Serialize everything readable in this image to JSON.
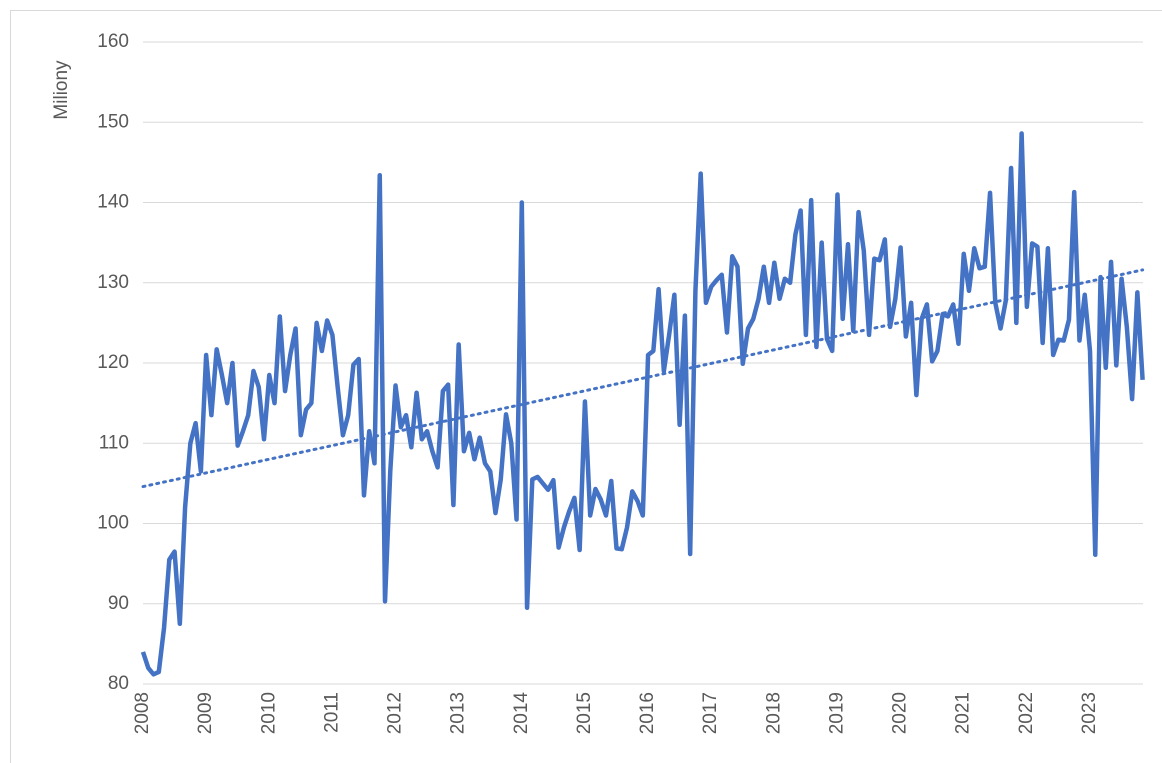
{
  "chart_data": {
    "type": "line",
    "y_label": "Miliony",
    "ylim": [
      80,
      160
    ],
    "yticks": [
      80,
      90,
      100,
      110,
      120,
      130,
      140,
      150,
      160
    ],
    "grid": true,
    "categories": [
      "2008",
      null,
      null,
      null,
      null,
      null,
      null,
      null,
      null,
      null,
      null,
      null,
      "2009",
      null,
      null,
      null,
      null,
      null,
      null,
      null,
      null,
      null,
      null,
      null,
      "2010",
      null,
      null,
      null,
      null,
      null,
      null,
      null,
      null,
      null,
      null,
      null,
      "2011",
      null,
      null,
      null,
      null,
      null,
      null,
      null,
      null,
      null,
      null,
      null,
      "2012",
      null,
      null,
      null,
      null,
      null,
      null,
      null,
      null,
      null,
      null,
      null,
      "2013",
      null,
      null,
      null,
      null,
      null,
      null,
      null,
      null,
      null,
      null,
      null,
      "2014",
      null,
      null,
      null,
      null,
      null,
      null,
      null,
      null,
      null,
      null,
      null,
      "2015",
      null,
      null,
      null,
      null,
      null,
      null,
      null,
      null,
      null,
      null,
      null,
      "2016",
      null,
      null,
      null,
      null,
      null,
      null,
      null,
      null,
      null,
      null,
      null,
      "2017",
      null,
      null,
      null,
      null,
      null,
      null,
      null,
      null,
      null,
      null,
      null,
      "2018",
      null,
      null,
      null,
      null,
      null,
      null,
      null,
      null,
      null,
      null,
      null,
      "2019",
      null,
      null,
      null,
      null,
      null,
      null,
      null,
      null,
      null,
      null,
      null,
      "2020",
      null,
      null,
      null,
      null,
      null,
      null,
      null,
      null,
      null,
      null,
      null,
      "2021",
      null,
      null,
      null,
      null,
      null,
      null,
      null,
      null,
      null,
      null,
      null,
      "2022",
      null,
      null,
      null,
      null,
      null,
      null,
      null,
      null,
      null,
      null,
      null,
      "2023",
      null,
      null,
      null,
      null,
      null,
      null,
      null,
      null,
      null,
      null
    ],
    "series": [
      {
        "color": "#4472c4",
        "values": [
          84,
          82,
          81.2,
          81.5,
          87,
          95.5,
          96.5,
          87.5,
          102,
          110,
          112.5,
          106.5,
          121,
          113.5,
          121.7,
          118.5,
          115,
          120,
          109.7,
          111.5,
          113.5,
          119,
          117,
          110.5,
          118.5,
          115,
          125.8,
          116.5,
          121,
          124.3,
          111,
          114.2,
          115,
          125,
          121.5,
          125.3,
          123.5,
          117,
          111,
          113.5,
          119.8,
          120.5,
          103.5,
          111.5,
          107.5,
          143.4,
          90.3,
          106.5,
          117.2,
          112,
          113.5,
          109.5,
          116.3,
          110.5,
          111.5,
          109,
          107,
          116.5,
          117.3,
          102.3,
          122.3,
          109,
          111.3,
          108,
          110.7,
          107.5,
          106.5,
          101.3,
          105.5,
          113.6,
          110,
          100.5,
          140,
          89.5,
          105.5,
          105.8,
          105,
          104.2,
          105.4,
          97,
          99.5,
          101.5,
          103.2,
          96.7,
          115.2,
          101,
          104.3,
          103,
          101,
          105.3,
          96.9,
          96.8,
          99.5,
          104,
          102.8,
          101,
          121,
          121.5,
          129.2,
          119,
          123.5,
          128.5,
          112.3,
          125.9,
          96.2,
          129,
          143.6,
          127.5,
          129.5,
          130.3,
          131,
          123.8,
          133.3,
          132,
          119.9,
          124.3,
          125.5,
          128,
          132,
          127.5,
          132.5,
          128,
          130.5,
          130,
          136,
          139,
          123.5,
          140.3,
          122,
          135,
          123,
          121.5,
          141,
          125.5,
          134.8,
          124,
          138.8,
          134,
          123.5,
          133,
          132.8,
          135.4,
          124.5,
          128,
          134.4,
          123.3,
          127.5,
          116,
          125.5,
          127.3,
          120.2,
          121.5,
          126.1,
          125.8,
          127.3,
          122.4,
          133.6,
          129,
          134.3,
          131.8,
          132,
          141.2,
          127.5,
          124.3,
          127.8,
          144.3,
          125,
          148.6,
          127,
          134.9,
          134.5,
          122.5,
          134.3,
          121,
          122.9,
          122.8,
          125.4,
          141.3,
          122.8,
          128.5,
          121.5,
          96.1,
          130.7,
          119.4,
          132.6,
          119.7,
          130.5,
          124.5,
          115.5,
          128.8,
          117.9
        ]
      }
    ],
    "trendline": {
      "color": "#4472c4",
      "values": [
        104.6,
        131.6
      ]
    }
  }
}
